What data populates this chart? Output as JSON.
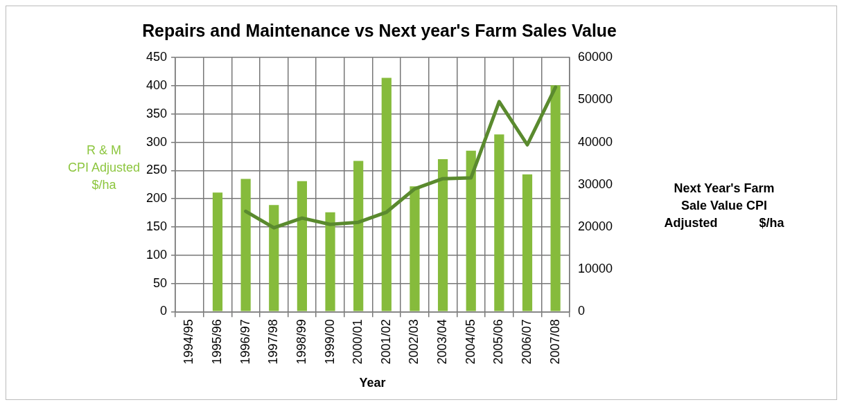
{
  "chart_data": {
    "type": "bar",
    "title": "Repairs and Maintenance vs Next year's Farm Sales Value",
    "xlabel": "Year",
    "ylabel": "R & M\nCPI Adjusted\n$/ha",
    "y2label": "Next Year's Farm\nSale Value CPI\nAdjusted            $/ha",
    "categories": [
      "1994/95",
      "1995/96",
      "1996/97",
      "1997/98",
      "1998/99",
      "1999/00",
      "2000/01",
      "2001/02",
      "2002/03",
      "2003/04",
      "2004/05",
      "2005/06",
      "2006/07",
      "2007/08"
    ],
    "series": [
      {
        "color": "#86bb3c",
        "values": [
          null,
          211,
          235,
          189,
          231,
          176,
          267,
          414,
          222,
          270,
          285,
          314,
          243,
          401
        ]
      },
      {
        "type": "line",
        "axis": "y2",
        "color": "#5a8a2e",
        "values": [
          null,
          null,
          23700,
          19800,
          22100,
          20600,
          21100,
          23500,
          29000,
          31400,
          31600,
          49600,
          39400,
          53000
        ]
      }
    ],
    "ylim": [
      0,
      450
    ],
    "yticks": [
      0,
      50,
      100,
      150,
      200,
      250,
      300,
      350,
      400,
      450
    ],
    "y2lim": [
      0,
      60000
    ],
    "y2ticks": [
      0,
      10000,
      20000,
      30000,
      40000,
      50000,
      60000
    ],
    "grid": true,
    "legend": false,
    "marker": "none",
    "line_style": "solid"
  }
}
